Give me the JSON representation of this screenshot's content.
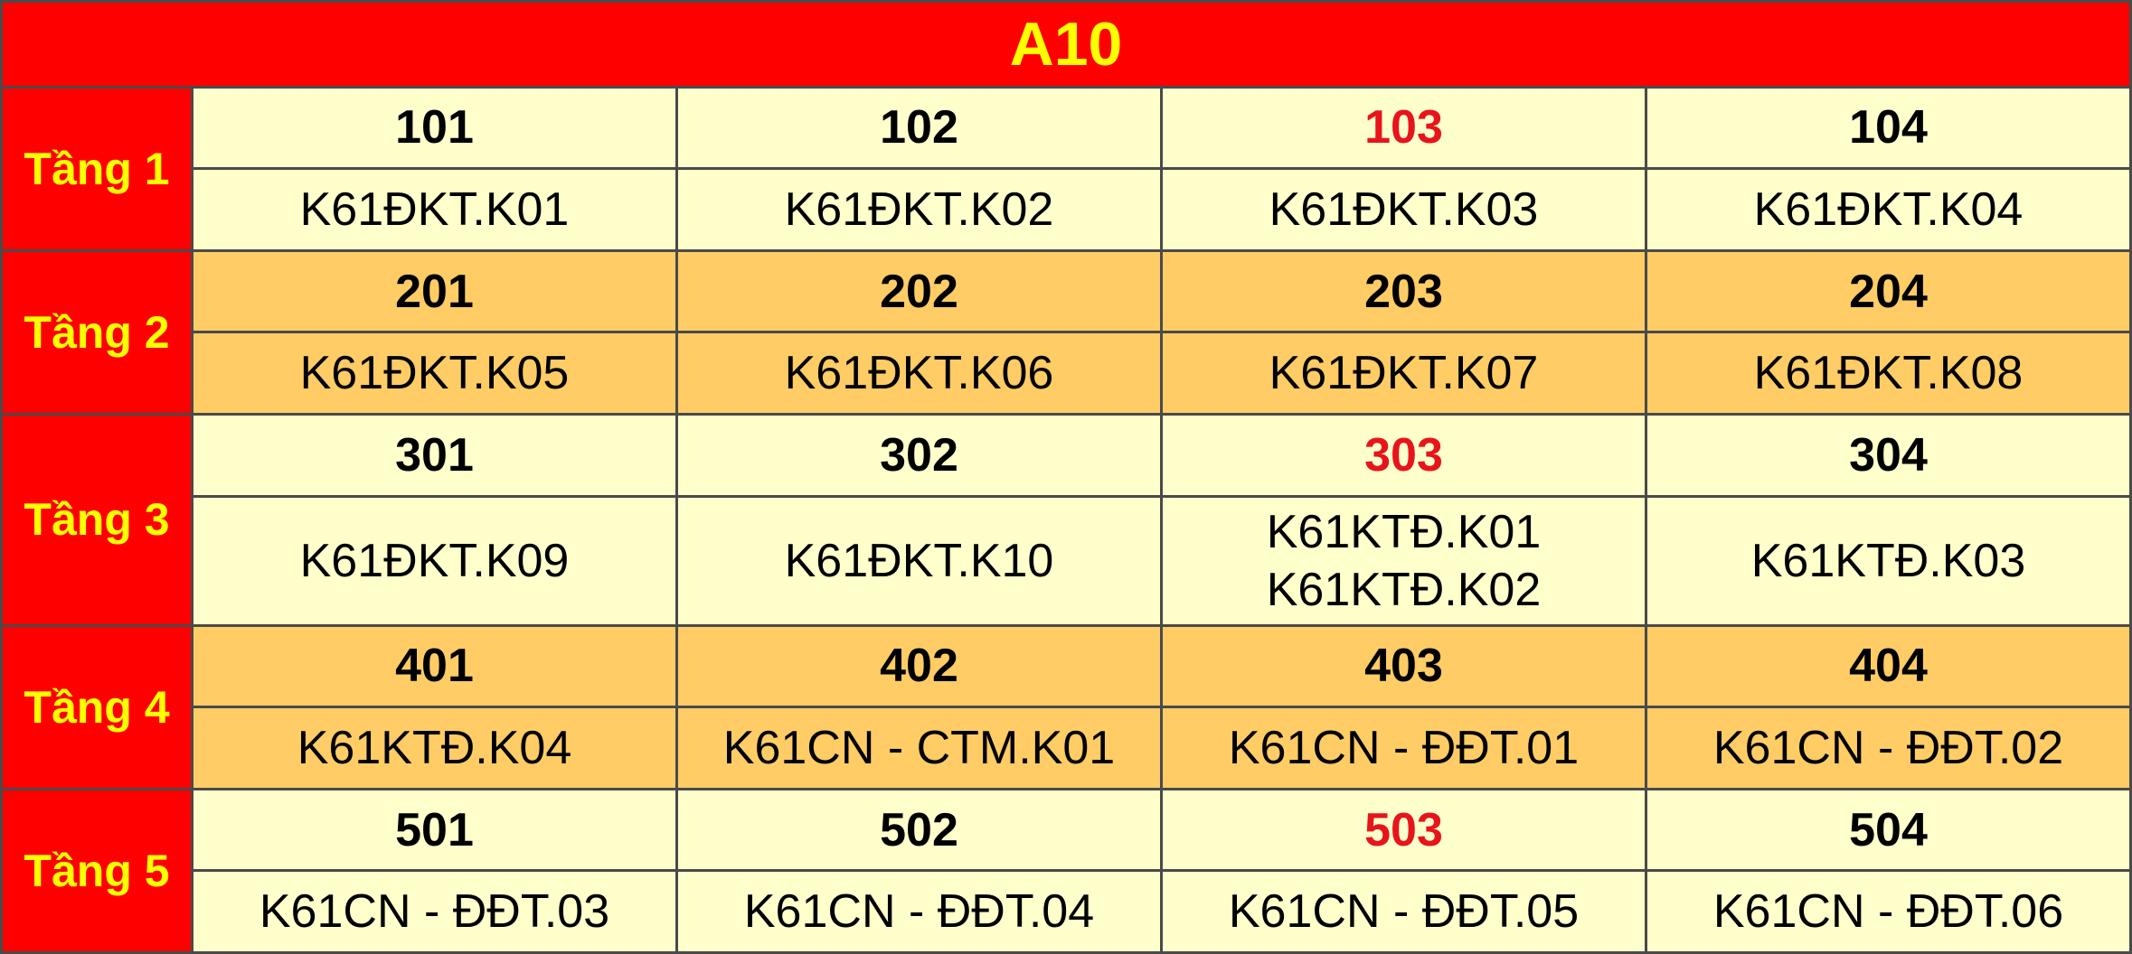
{
  "title": "A10",
  "floors": [
    {
      "label": "Tầng 1",
      "rooms": [
        {
          "number": "101",
          "classes": [
            "K61ĐKT.K01"
          ]
        },
        {
          "number": "102",
          "classes": [
            "K61ĐKT.K02"
          ]
        },
        {
          "number": "103",
          "color": "#e8141b",
          "classes": [
            "K61ĐKT.K03"
          ]
        },
        {
          "number": "104",
          "classes": [
            "K61ĐKT.K04"
          ]
        }
      ]
    },
    {
      "label": "Tầng 2",
      "rooms": [
        {
          "number": "201",
          "classes": [
            "K61ĐKT.K05"
          ]
        },
        {
          "number": "202",
          "classes": [
            "K61ĐKT.K06"
          ]
        },
        {
          "number": "203",
          "classes": [
            "K61ĐKT.K07"
          ]
        },
        {
          "number": "204",
          "classes": [
            "K61ĐKT.K08"
          ]
        }
      ]
    },
    {
      "label": "Tầng 3",
      "rooms": [
        {
          "number": "301",
          "classes": [
            "K61ĐKT.K09"
          ]
        },
        {
          "number": "302",
          "classes": [
            "K61ĐKT.K10"
          ]
        },
        {
          "number": "303",
          "color": "#e8141b",
          "classes": [
            "K61KTĐ.K01",
            "K61KTĐ.K02"
          ]
        },
        {
          "number": "304",
          "classes": [
            "K61KTĐ.K03"
          ]
        }
      ]
    },
    {
      "label": "Tầng 4",
      "rooms": [
        {
          "number": "401",
          "classes": [
            "K61KTĐ.K04"
          ]
        },
        {
          "number": "402",
          "classes": [
            "K61CN - CTM.K01"
          ]
        },
        {
          "number": "403",
          "classes": [
            "K61CN - ĐĐT.01"
          ]
        },
        {
          "number": "404",
          "classes": [
            "K61CN - ĐĐT.02"
          ]
        }
      ]
    },
    {
      "label": "Tầng 5",
      "rooms": [
        {
          "number": "501",
          "classes": [
            "K61CN - ĐĐT.03"
          ]
        },
        {
          "number": "502",
          "classes": [
            "K61CN - ĐĐT.04"
          ]
        },
        {
          "number": "503",
          "color": "#e8141b",
          "classes": [
            "K61CN - ĐĐT.05"
          ]
        },
        {
          "number": "504",
          "classes": [
            "K61CN - ĐĐT.06"
          ]
        }
      ]
    }
  ]
}
